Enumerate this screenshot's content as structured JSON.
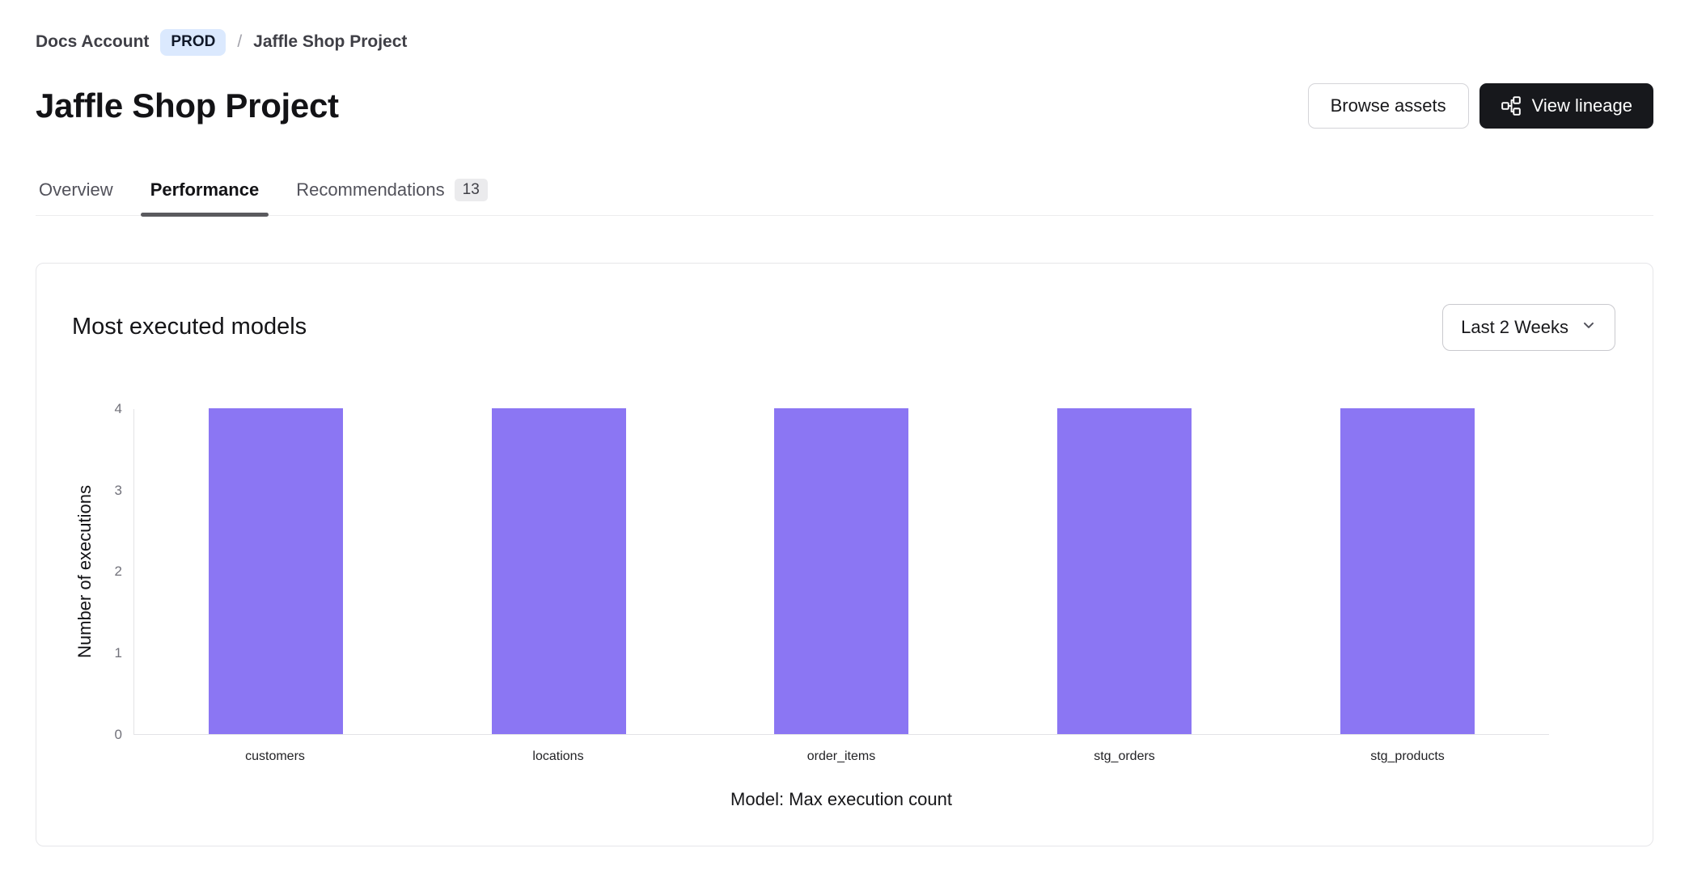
{
  "colors": {
    "bar": "#8b76f3",
    "prod_badge_bg": "#dbe9fe",
    "dark_button_bg": "#17181c",
    "active_tab_underline": "#5a5a5e"
  },
  "breadcrumb": {
    "account": "Docs Account",
    "environment": "PROD",
    "separator": "/",
    "project": "Jaffle Shop Project"
  },
  "header": {
    "title": "Jaffle Shop Project",
    "buttons": {
      "browse_assets": "Browse assets",
      "view_lineage": "View lineage"
    }
  },
  "tabs": [
    {
      "label": "Overview",
      "active": false
    },
    {
      "label": "Performance",
      "active": true
    },
    {
      "label": "Recommendations",
      "badge": "13",
      "active": false
    }
  ],
  "performance_card": {
    "title": "Most executed models",
    "time_range": "Last 2 Weeks"
  },
  "chart_data": {
    "type": "bar",
    "title": "Most executed models",
    "categories": [
      "customers",
      "locations",
      "order_items",
      "stg_orders",
      "stg_products"
    ],
    "values": [
      4,
      4,
      4,
      4,
      4
    ],
    "xlabel": "Model: Max execution count",
    "ylabel": "Number of executions",
    "ylim": [
      0,
      4
    ],
    "yticks": [
      0,
      1,
      2,
      3,
      4
    ],
    "bar_color": "#8b76f3",
    "grid": false,
    "legend": false
  }
}
